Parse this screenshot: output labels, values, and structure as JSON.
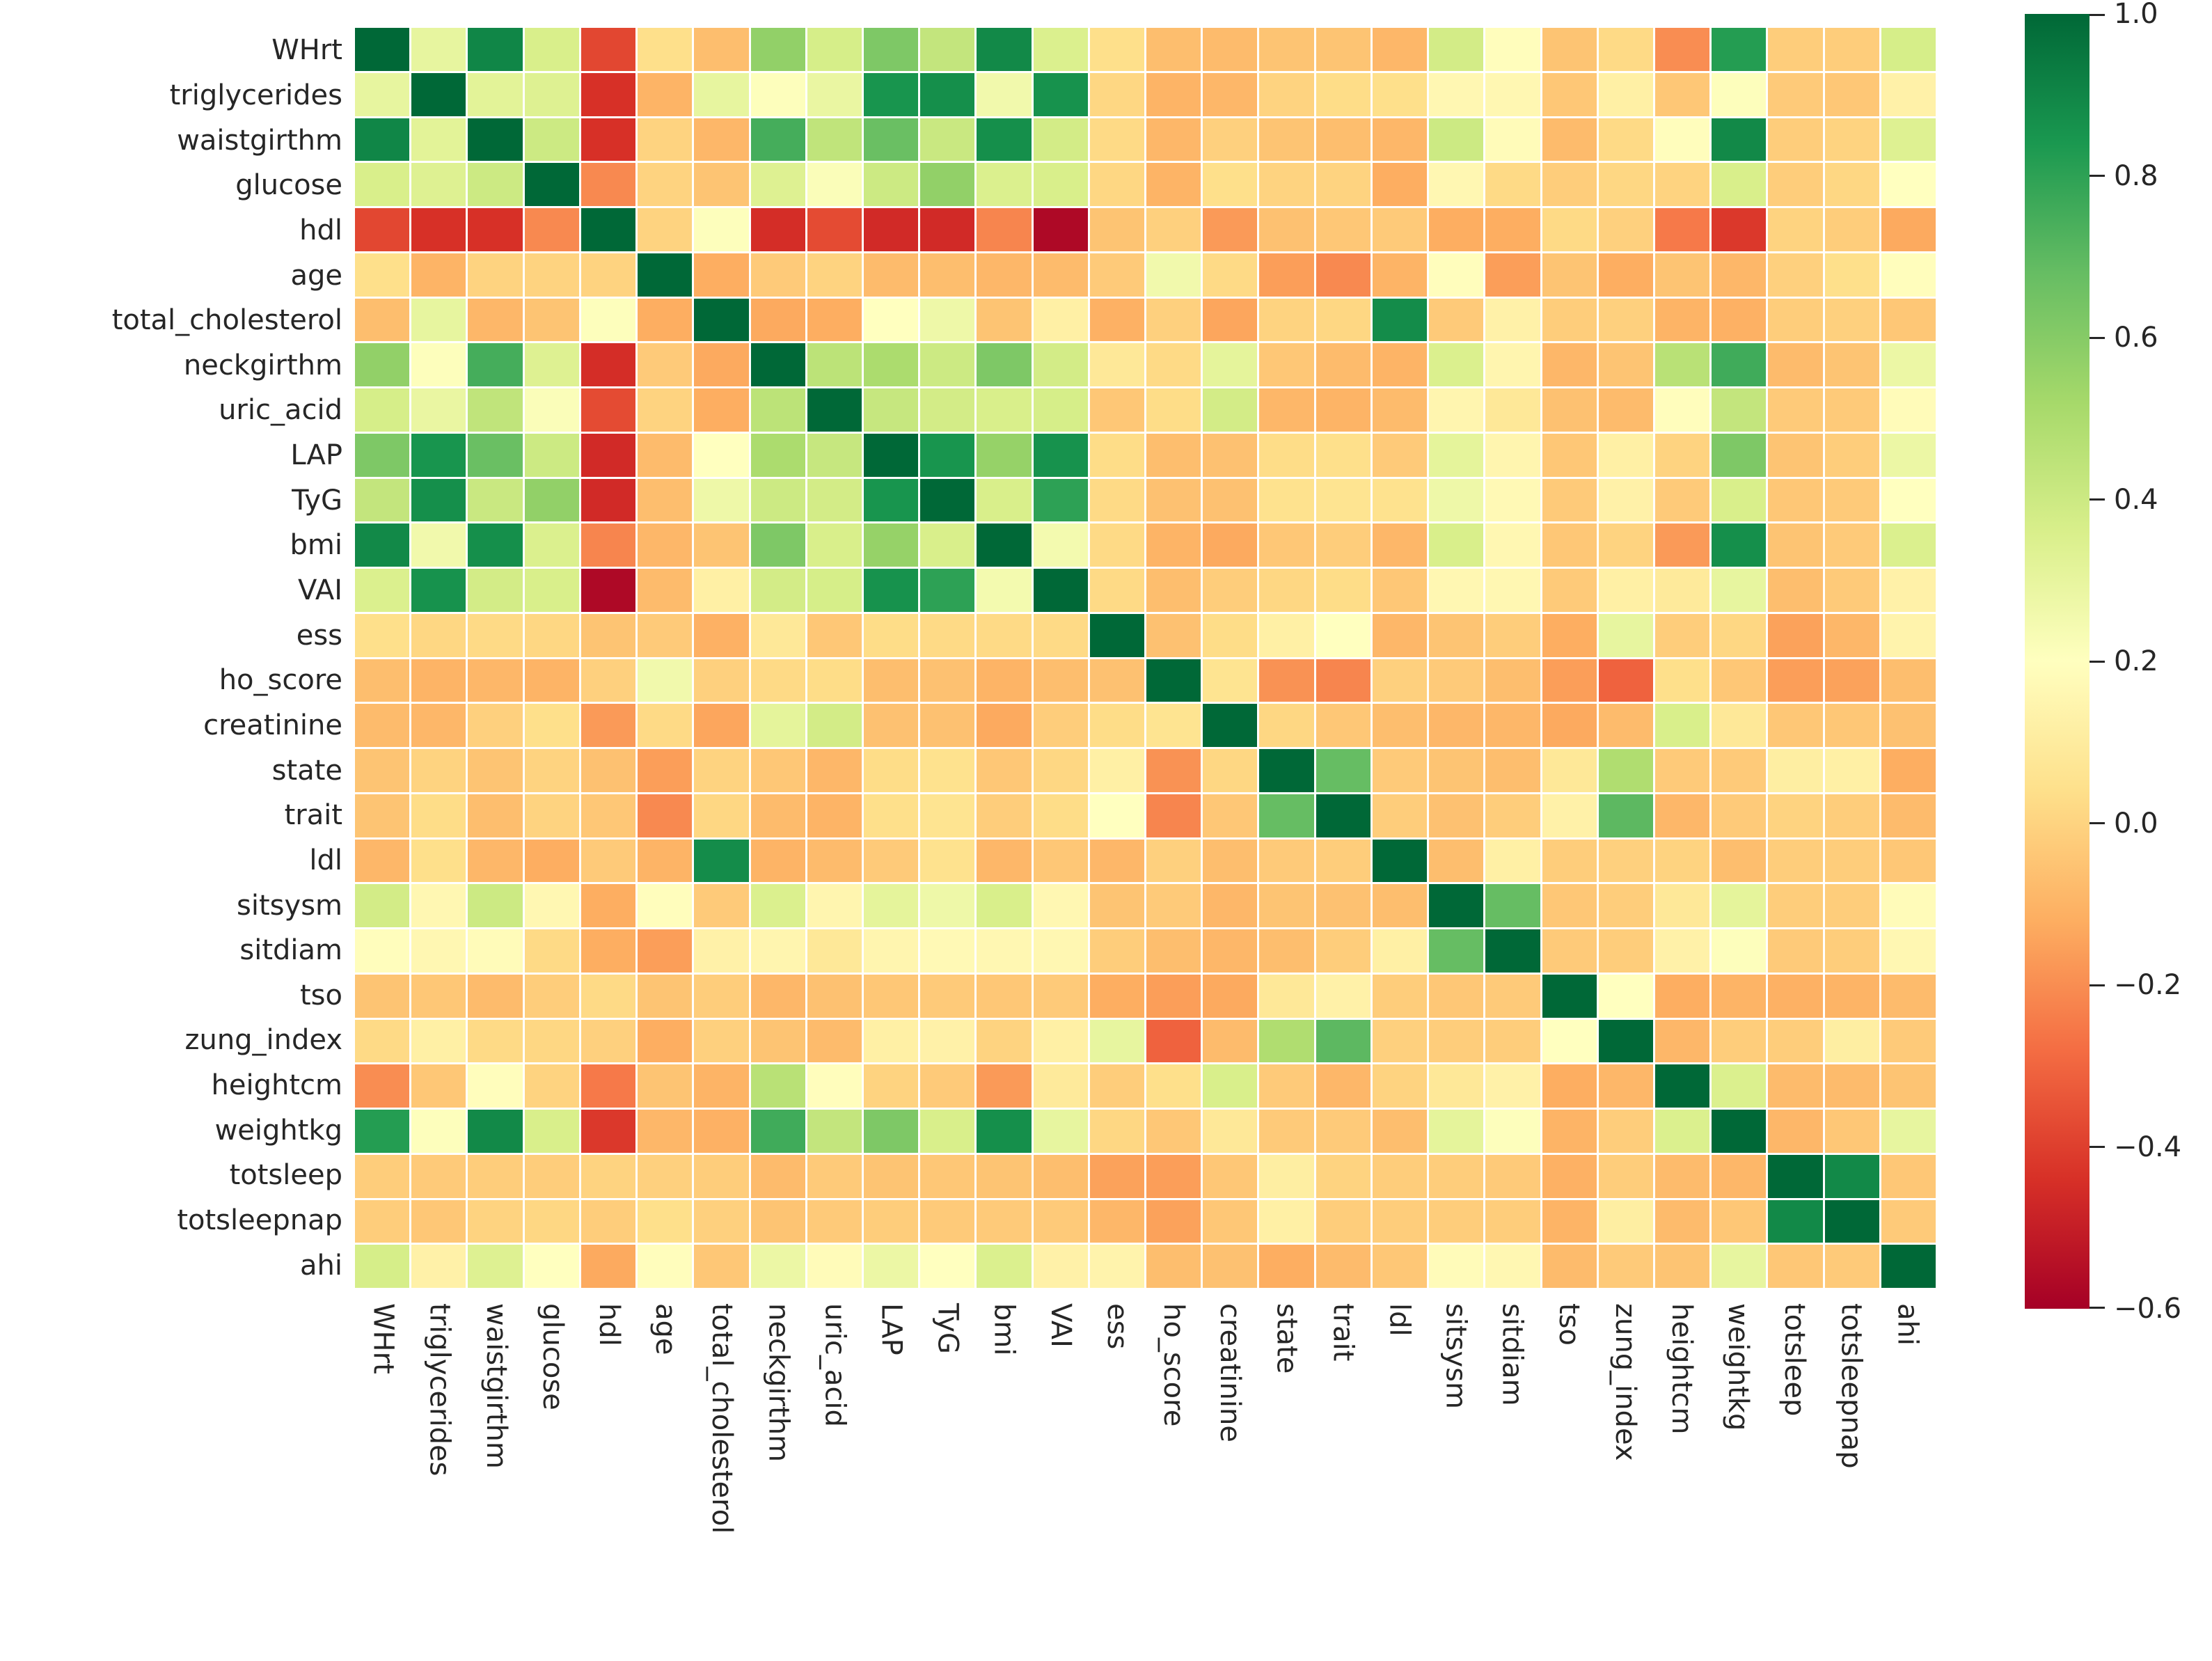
{
  "figure": {
    "background_color": "#ffffff",
    "tick_label_color": "#262626",
    "cell_gap_color": "#ffffff"
  },
  "chart_data": {
    "type": "heatmap",
    "title": "",
    "xlabel": "",
    "ylabel": "",
    "legend_position": "right-colorbar",
    "grid": false,
    "colormap": {
      "name": "RdYlGn",
      "anchors": [
        "#a50026",
        "#d73027",
        "#f46d43",
        "#fdae61",
        "#fee08b",
        "#ffffbf",
        "#d9ef8b",
        "#a6d96a",
        "#66bd63",
        "#1a9850",
        "#006837"
      ]
    },
    "vmin": -0.6,
    "vmax": 1.0,
    "colorbar_tick_values": [
      1.0,
      0.8,
      0.6,
      0.4,
      0.2,
      0.0,
      -0.2,
      -0.4,
      -0.6
    ],
    "colorbar_tick_labels": [
      "1.0",
      "0.8",
      "0.6",
      "0.4",
      "0.2",
      "0.0",
      "−0.2",
      "−0.4",
      "−0.6"
    ],
    "variables": [
      "WHrt",
      "triglycerides",
      "waistgirthm",
      "glucose",
      "hdl",
      "age",
      "total_cholesterol",
      "neckgirthm",
      "uric_acid",
      "LAP",
      "TyG",
      "bmi",
      "VAI",
      "ess",
      "ho_score",
      "creatinine",
      "state",
      "trait",
      "ldl",
      "sitsysm",
      "sitdiam",
      "tso",
      "zung_index",
      "heightcm",
      "weightkg",
      "totsleep",
      "totsleepnap",
      "ahi"
    ],
    "matrix": [
      [
        1.0,
        0.3,
        0.9,
        0.36,
        -0.38,
        0.04,
        -0.07,
        0.57,
        0.37,
        0.62,
        0.43,
        0.89,
        0.35,
        0.04,
        -0.07,
        -0.08,
        -0.05,
        -0.05,
        -0.09,
        0.38,
        0.19,
        -0.05,
        0.02,
        -0.2,
        0.82,
        -0.02,
        -0.02,
        0.37
      ],
      [
        0.3,
        1.0,
        0.32,
        0.34,
        -0.44,
        -0.1,
        0.3,
        0.21,
        0.29,
        0.85,
        0.87,
        0.26,
        0.86,
        0.01,
        -0.1,
        -0.09,
        0.0,
        0.03,
        0.04,
        0.16,
        0.16,
        -0.04,
        0.12,
        -0.04,
        0.21,
        -0.03,
        -0.04,
        0.13
      ],
      [
        0.9,
        0.32,
        1.0,
        0.4,
        -0.44,
        0.0,
        -0.09,
        0.75,
        0.44,
        0.67,
        0.41,
        0.87,
        0.38,
        0.02,
        -0.09,
        -0.01,
        -0.05,
        -0.07,
        -0.09,
        0.4,
        0.18,
        -0.08,
        0.02,
        0.19,
        0.89,
        -0.02,
        0.0,
        0.34
      ],
      [
        0.36,
        0.34,
        0.4,
        1.0,
        -0.21,
        0.0,
        -0.05,
        0.34,
        0.22,
        0.4,
        0.57,
        0.35,
        0.36,
        0.01,
        -0.1,
        0.04,
        0.0,
        0.0,
        -0.12,
        0.16,
        0.02,
        -0.02,
        0.01,
        0.0,
        0.36,
        -0.02,
        0.01,
        0.2
      ],
      [
        -0.38,
        -0.44,
        -0.44,
        -0.21,
        1.0,
        0.0,
        0.21,
        -0.45,
        -0.37,
        -0.46,
        -0.46,
        -0.22,
        -0.57,
        -0.05,
        -0.01,
        -0.17,
        -0.06,
        -0.04,
        -0.03,
        -0.12,
        -0.12,
        0.02,
        -0.01,
        -0.25,
        -0.42,
        0.0,
        -0.02,
        -0.13
      ],
      [
        0.04,
        -0.1,
        0.0,
        0.0,
        0.0,
        1.0,
        -0.12,
        -0.03,
        0.0,
        -0.08,
        -0.07,
        -0.09,
        -0.08,
        -0.03,
        0.26,
        0.02,
        -0.16,
        -0.21,
        -0.1,
        0.19,
        -0.16,
        -0.05,
        -0.12,
        -0.05,
        -0.09,
        -0.01,
        0.04,
        0.19
      ],
      [
        -0.07,
        0.3,
        -0.09,
        -0.05,
        0.21,
        -0.12,
        1.0,
        -0.13,
        -0.12,
        0.2,
        0.27,
        -0.05,
        0.12,
        -0.11,
        -0.01,
        -0.14,
        0.0,
        0.01,
        0.88,
        -0.03,
        0.13,
        -0.02,
        -0.01,
        -0.1,
        -0.11,
        -0.02,
        -0.01,
        -0.04
      ],
      [
        0.57,
        0.21,
        0.75,
        0.34,
        -0.45,
        -0.03,
        -0.13,
        1.0,
        0.45,
        0.5,
        0.4,
        0.62,
        0.38,
        0.08,
        0.02,
        0.31,
        -0.04,
        -0.08,
        -0.1,
        0.35,
        0.15,
        -0.09,
        -0.05,
        0.46,
        0.76,
        -0.08,
        -0.05,
        0.28
      ],
      [
        0.37,
        0.29,
        0.44,
        0.22,
        -0.37,
        0.0,
        -0.12,
        0.45,
        1.0,
        0.42,
        0.38,
        0.36,
        0.37,
        -0.04,
        0.03,
        0.38,
        -0.09,
        -0.1,
        -0.08,
        0.15,
        0.08,
        -0.06,
        -0.08,
        0.19,
        0.43,
        -0.03,
        -0.03,
        0.18
      ],
      [
        0.62,
        0.85,
        0.67,
        0.4,
        -0.46,
        -0.08,
        0.2,
        0.5,
        0.42,
        1.0,
        0.85,
        0.56,
        0.86,
        0.03,
        -0.07,
        -0.06,
        0.03,
        0.04,
        -0.03,
        0.31,
        0.15,
        -0.04,
        0.12,
        0.0,
        0.62,
        -0.05,
        -0.02,
        0.28
      ],
      [
        0.43,
        0.87,
        0.41,
        0.57,
        -0.46,
        -0.07,
        0.27,
        0.4,
        0.38,
        0.85,
        1.0,
        0.36,
        0.8,
        0.02,
        -0.06,
        -0.06,
        0.05,
        0.06,
        0.05,
        0.27,
        0.17,
        -0.03,
        0.13,
        -0.03,
        0.36,
        -0.04,
        -0.03,
        0.2
      ],
      [
        0.89,
        0.26,
        0.87,
        0.35,
        -0.22,
        -0.09,
        -0.05,
        0.62,
        0.36,
        0.56,
        0.36,
        1.0,
        0.25,
        0.02,
        -0.1,
        -0.13,
        -0.04,
        -0.02,
        -0.09,
        0.36,
        0.16,
        -0.04,
        0.0,
        -0.17,
        0.87,
        -0.05,
        -0.03,
        0.35
      ],
      [
        0.35,
        0.86,
        0.38,
        0.36,
        -0.57,
        -0.08,
        0.12,
        0.38,
        0.37,
        0.86,
        0.8,
        0.25,
        1.0,
        0.02,
        -0.07,
        -0.02,
        0.01,
        0.03,
        -0.04,
        0.16,
        0.16,
        -0.03,
        0.12,
        0.09,
        0.3,
        -0.07,
        -0.03,
        0.13
      ],
      [
        0.04,
        0.01,
        0.02,
        0.01,
        -0.05,
        -0.03,
        -0.11,
        0.08,
        -0.04,
        0.03,
        0.02,
        0.02,
        0.02,
        1.0,
        -0.06,
        0.03,
        0.12,
        0.2,
        -0.09,
        -0.05,
        -0.02,
        -0.12,
        0.3,
        -0.02,
        0.01,
        -0.15,
        -0.09,
        0.14
      ],
      [
        -0.07,
        -0.1,
        -0.09,
        -0.1,
        -0.01,
        0.26,
        -0.01,
        0.02,
        0.03,
        -0.07,
        -0.06,
        -0.1,
        -0.07,
        -0.06,
        1.0,
        0.06,
        -0.19,
        -0.22,
        -0.01,
        -0.03,
        -0.07,
        -0.16,
        -0.31,
        0.04,
        -0.04,
        -0.16,
        -0.15,
        -0.07
      ],
      [
        -0.08,
        -0.09,
        -0.01,
        0.04,
        -0.17,
        0.02,
        -0.14,
        0.31,
        0.38,
        -0.06,
        -0.06,
        -0.13,
        -0.02,
        0.03,
        0.06,
        1.0,
        0.01,
        -0.04,
        -0.07,
        -0.09,
        -0.09,
        -0.13,
        -0.08,
        0.36,
        0.08,
        -0.04,
        -0.04,
        -0.06
      ],
      [
        -0.05,
        0.0,
        -0.05,
        0.0,
        -0.06,
        -0.16,
        0.0,
        -0.04,
        -0.09,
        0.03,
        0.05,
        -0.04,
        0.01,
        0.12,
        -0.19,
        0.01,
        1.0,
        0.68,
        -0.03,
        -0.05,
        -0.07,
        0.08,
        0.49,
        -0.03,
        -0.03,
        0.11,
        0.12,
        -0.12
      ],
      [
        -0.05,
        0.03,
        -0.07,
        0.0,
        -0.04,
        -0.21,
        0.01,
        -0.08,
        -0.1,
        0.04,
        0.06,
        -0.02,
        0.03,
        0.2,
        -0.22,
        -0.04,
        0.68,
        1.0,
        -0.02,
        -0.06,
        -0.02,
        0.13,
        0.7,
        -0.09,
        -0.03,
        0.0,
        -0.02,
        -0.08
      ],
      [
        -0.09,
        0.04,
        -0.09,
        -0.12,
        -0.03,
        -0.1,
        0.88,
        -0.1,
        -0.08,
        -0.03,
        0.05,
        -0.09,
        -0.04,
        -0.09,
        -0.01,
        -0.07,
        -0.03,
        -0.02,
        1.0,
        -0.07,
        0.12,
        -0.02,
        -0.01,
        0.0,
        -0.07,
        -0.02,
        -0.02,
        -0.04
      ],
      [
        0.38,
        0.16,
        0.4,
        0.16,
        -0.12,
        0.19,
        -0.03,
        0.35,
        0.15,
        0.31,
        0.27,
        0.36,
        0.16,
        -0.05,
        -0.03,
        -0.09,
        -0.05,
        -0.06,
        -0.07,
        1.0,
        0.68,
        -0.04,
        -0.02,
        0.08,
        0.31,
        -0.02,
        -0.02,
        0.18
      ],
      [
        0.19,
        0.16,
        0.18,
        0.02,
        -0.12,
        -0.16,
        0.13,
        0.15,
        0.08,
        0.15,
        0.17,
        0.16,
        0.16,
        -0.02,
        -0.07,
        -0.09,
        -0.07,
        -0.02,
        0.12,
        0.68,
        1.0,
        -0.03,
        -0.02,
        0.13,
        0.21,
        -0.03,
        -0.02,
        0.16
      ],
      [
        -0.05,
        -0.04,
        -0.08,
        -0.02,
        0.02,
        -0.05,
        -0.02,
        -0.09,
        -0.06,
        -0.04,
        -0.03,
        -0.04,
        -0.03,
        -0.12,
        -0.16,
        -0.13,
        0.08,
        0.13,
        -0.02,
        -0.04,
        -0.03,
        1.0,
        0.2,
        -0.12,
        -0.1,
        -0.11,
        -0.1,
        -0.08
      ],
      [
        0.02,
        0.12,
        0.02,
        0.01,
        -0.01,
        -0.12,
        -0.01,
        -0.05,
        -0.08,
        0.12,
        0.13,
        0.0,
        0.12,
        0.3,
        -0.31,
        -0.08,
        0.49,
        0.7,
        -0.01,
        -0.02,
        -0.02,
        0.2,
        1.0,
        -0.09,
        -0.02,
        -0.02,
        0.11,
        -0.03
      ],
      [
        -0.2,
        -0.04,
        0.19,
        0.0,
        -0.25,
        -0.05,
        -0.1,
        0.46,
        0.19,
        0.0,
        -0.03,
        -0.17,
        0.09,
        -0.02,
        0.04,
        0.36,
        -0.03,
        -0.09,
        0.0,
        0.08,
        0.13,
        -0.12,
        -0.09,
        1.0,
        0.35,
        -0.08,
        -0.08,
        -0.05
      ],
      [
        0.82,
        0.21,
        0.89,
        0.36,
        -0.42,
        -0.09,
        -0.11,
        0.76,
        0.43,
        0.62,
        0.36,
        0.87,
        0.3,
        0.01,
        -0.04,
        0.08,
        -0.03,
        -0.03,
        -0.07,
        0.31,
        0.21,
        -0.1,
        -0.02,
        0.35,
        1.0,
        -0.09,
        -0.04,
        0.3
      ],
      [
        -0.02,
        -0.03,
        -0.02,
        -0.02,
        0.0,
        -0.01,
        -0.02,
        -0.08,
        -0.03,
        -0.05,
        -0.04,
        -0.05,
        -0.07,
        -0.15,
        -0.16,
        -0.04,
        0.11,
        0.0,
        -0.02,
        -0.02,
        -0.03,
        -0.11,
        -0.02,
        -0.08,
        -0.09,
        1.0,
        0.89,
        -0.04
      ],
      [
        -0.02,
        -0.04,
        0.0,
        0.01,
        -0.02,
        0.04,
        -0.01,
        -0.05,
        -0.03,
        -0.02,
        -0.03,
        -0.03,
        -0.03,
        -0.09,
        -0.15,
        -0.04,
        0.12,
        -0.02,
        -0.02,
        -0.02,
        -0.02,
        -0.1,
        0.11,
        -0.08,
        -0.04,
        0.89,
        1.0,
        -0.03
      ],
      [
        0.37,
        0.13,
        0.34,
        0.2,
        -0.13,
        0.19,
        -0.04,
        0.28,
        0.18,
        0.28,
        0.2,
        0.35,
        0.13,
        0.14,
        -0.07,
        -0.06,
        -0.12,
        -0.08,
        -0.04,
        0.18,
        0.16,
        -0.08,
        -0.03,
        -0.05,
        0.3,
        -0.04,
        -0.03,
        1.0
      ]
    ]
  }
}
